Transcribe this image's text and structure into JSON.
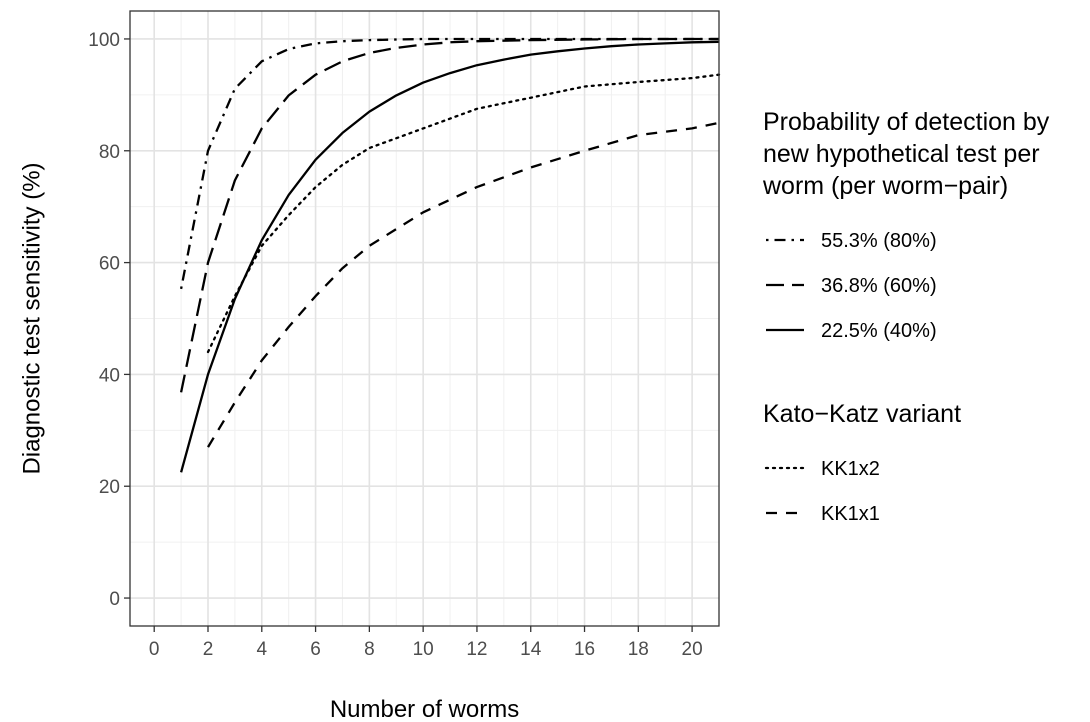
{
  "chart_data": {
    "type": "line",
    "title": "",
    "xlabel": "Number of worms",
    "ylabel": "Diagnostic test sensitivity (%)",
    "xlim": [
      -0.9,
      21
    ],
    "ylim": [
      -5,
      105
    ],
    "x_ticks": [
      0,
      2,
      4,
      6,
      8,
      10,
      12,
      14,
      16,
      18,
      20
    ],
    "y_ticks": [
      0,
      20,
      40,
      60,
      80,
      100
    ],
    "grid": true,
    "legend_placement": "right",
    "legends": [
      {
        "title": "Probability of detection by new hypothetical test per worm (per worm−pair)",
        "title_lines": [
          "Probability of detection by",
          "new hypothetical test per",
          "worm (per worm−pair)"
        ],
        "entries": [
          {
            "label": "55.3% (80%)",
            "dash": "dashdot"
          },
          {
            "label": "36.8% (60%)",
            "dash": "longdash"
          },
          {
            "label": "22.5% (40%)",
            "dash": "solid"
          }
        ]
      },
      {
        "title": "Kato−Katz variant",
        "title_lines": [
          "Kato−Katz variant"
        ],
        "entries": [
          {
            "label": "KK1x2",
            "dash": "dotted"
          },
          {
            "label": "KK1x1",
            "dash": "dashed"
          }
        ]
      }
    ],
    "series": [
      {
        "name": "55.3% (80%)",
        "dash": "dashdot",
        "x": [
          1,
          2,
          3,
          4,
          5,
          6,
          7,
          8,
          9,
          10,
          12,
          14,
          16,
          18,
          20,
          21
        ],
        "y": [
          55.3,
          80.0,
          91.1,
          96.0,
          98.2,
          99.2,
          99.6,
          99.8,
          99.9,
          100,
          100,
          100,
          100,
          100,
          100,
          100
        ]
      },
      {
        "name": "36.8% (60%)",
        "dash": "longdash",
        "x": [
          1,
          2,
          3,
          4,
          5,
          6,
          7,
          8,
          9,
          10,
          11,
          12,
          14,
          16,
          18,
          20,
          21
        ],
        "y": [
          36.8,
          60.0,
          74.7,
          84.0,
          89.9,
          93.6,
          96.0,
          97.5,
          98.4,
          99.0,
          99.4,
          99.6,
          99.8,
          99.9,
          100,
          100,
          100
        ]
      },
      {
        "name": "22.5% (40%)",
        "dash": "solid",
        "x": [
          1,
          2,
          3,
          4,
          5,
          6,
          7,
          8,
          9,
          10,
          11,
          12,
          13,
          14,
          15,
          16,
          17,
          18,
          19,
          20,
          21
        ],
        "y": [
          22.5,
          40.0,
          53.5,
          64.0,
          72.1,
          78.4,
          83.2,
          87.0,
          89.9,
          92.2,
          93.9,
          95.3,
          96.3,
          97.2,
          97.8,
          98.3,
          98.7,
          99.0,
          99.2,
          99.4,
          99.5
        ]
      },
      {
        "name": "KK1x2",
        "dash": "dotted",
        "x": [
          2,
          3,
          4,
          5,
          6,
          7,
          8,
          10,
          12,
          14,
          16,
          18,
          20,
          21
        ],
        "y": [
          44.0,
          54.0,
          63.0,
          68.5,
          73.5,
          77.5,
          80.5,
          84.0,
          87.5,
          89.5,
          91.5,
          92.3,
          93.0,
          93.6
        ]
      },
      {
        "name": "KK1x1",
        "dash": "dashed",
        "x": [
          2,
          3,
          4,
          5,
          6,
          7,
          8,
          10,
          12,
          14,
          16,
          18,
          20,
          21
        ],
        "y": [
          27.0,
          35.0,
          42.5,
          48.5,
          54.0,
          59.0,
          63.0,
          69.0,
          73.5,
          77.0,
          80.0,
          82.8,
          84.0,
          85.0
        ]
      }
    ]
  }
}
